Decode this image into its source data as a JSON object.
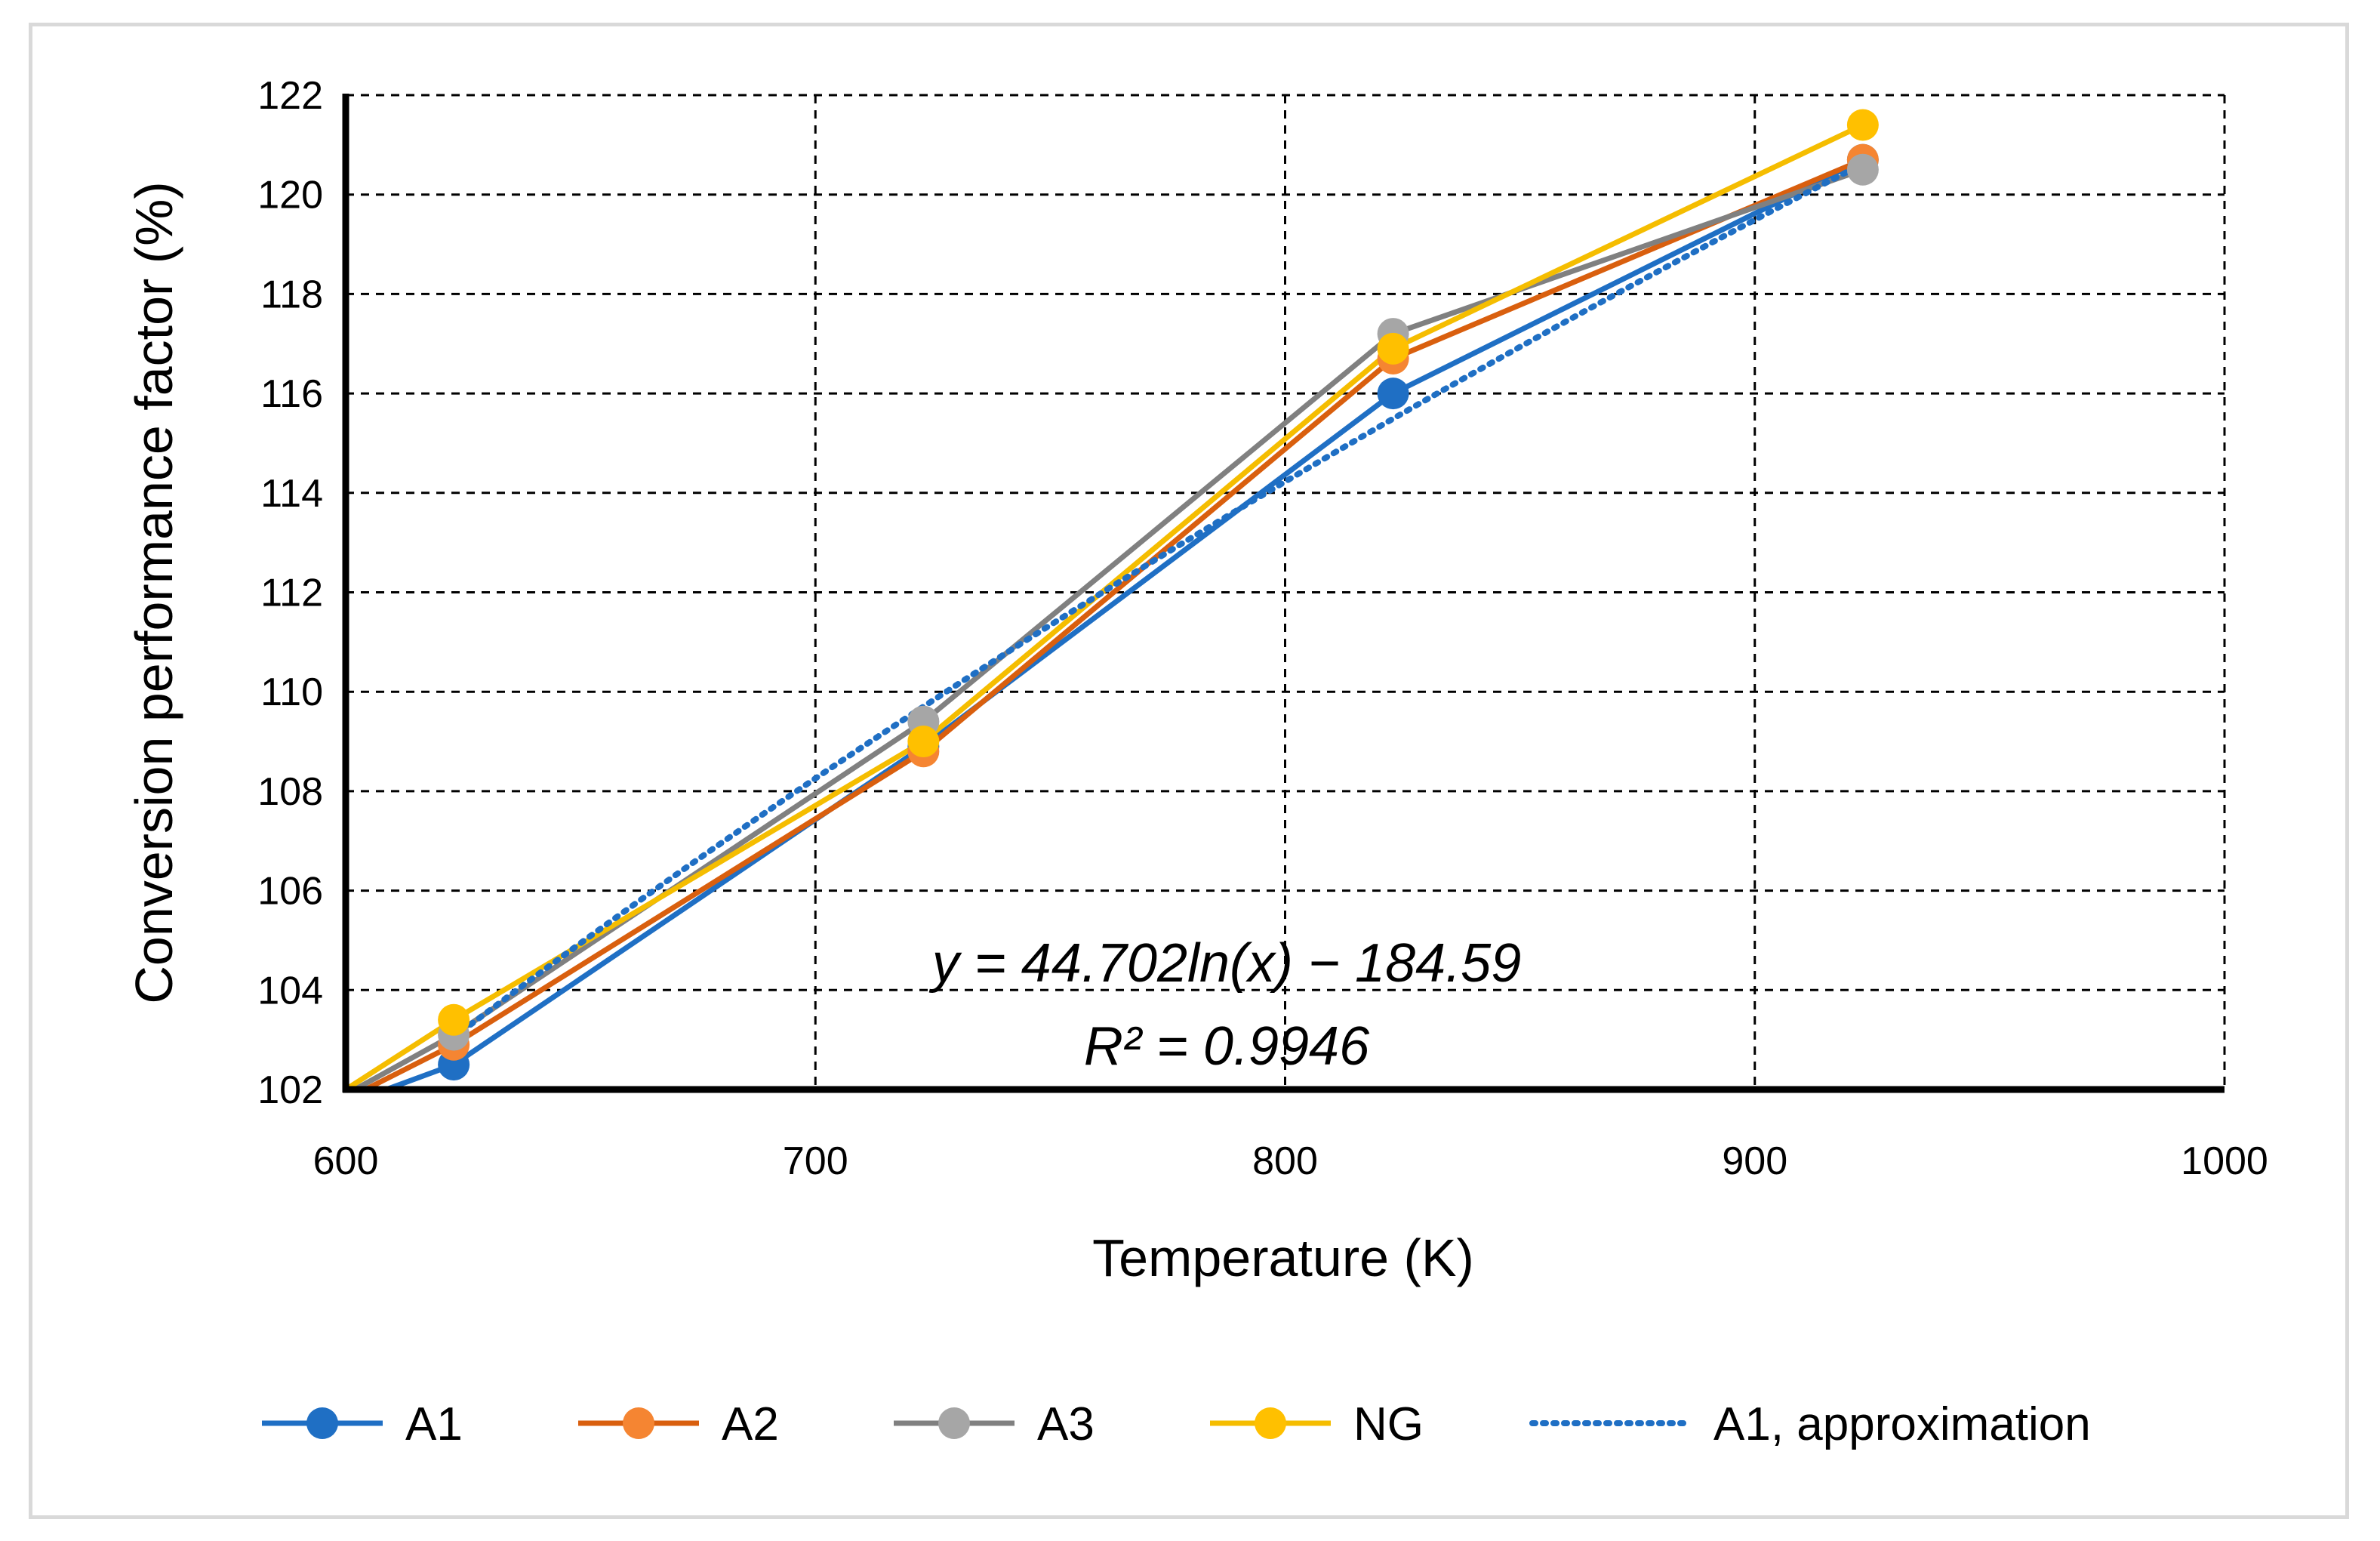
{
  "chart_data": {
    "type": "line",
    "title": "",
    "xlabel": "Temperature (K)",
    "ylabel": "Conversion performance factor (%)",
    "xlim": [
      600,
      1000
    ],
    "ylim": [
      102,
      122
    ],
    "xticks": [
      600,
      700,
      800,
      900,
      1000
    ],
    "yticks": [
      102,
      104,
      106,
      108,
      110,
      112,
      114,
      116,
      118,
      120,
      122
    ],
    "grid": true,
    "legend_position": "bottom",
    "x": [
      600,
      623,
      723,
      823,
      923
    ],
    "series": [
      {
        "name": "A1",
        "color": "#1f6fc4",
        "marker_color": "#1f6fc4",
        "values": [
          101.7,
          102.5,
          108.9,
          116.0,
          120.7
        ]
      },
      {
        "name": "A2",
        "color": "#d95f0e",
        "marker_color": "#f58532",
        "values": [
          101.8,
          102.9,
          108.8,
          116.7,
          120.7
        ]
      },
      {
        "name": "A3",
        "color": "#808080",
        "marker_color": "#a6a6a6",
        "values": [
          101.9,
          103.1,
          109.4,
          117.2,
          120.5
        ]
      },
      {
        "name": "NG",
        "color": "#f5bd00",
        "marker_color": "#ffc000",
        "values": [
          102.0,
          103.4,
          109.0,
          116.9,
          121.4
        ]
      }
    ],
    "trendline": {
      "name": "A1, approximation",
      "color": "#1f6fc4",
      "style": "dotted",
      "a": 44.702,
      "b": -184.59,
      "x_range": [
        623,
        923
      ],
      "equation_text": "y = 44.702ln(x) − 184.59",
      "r2_text": "R² = 0.9946"
    }
  }
}
